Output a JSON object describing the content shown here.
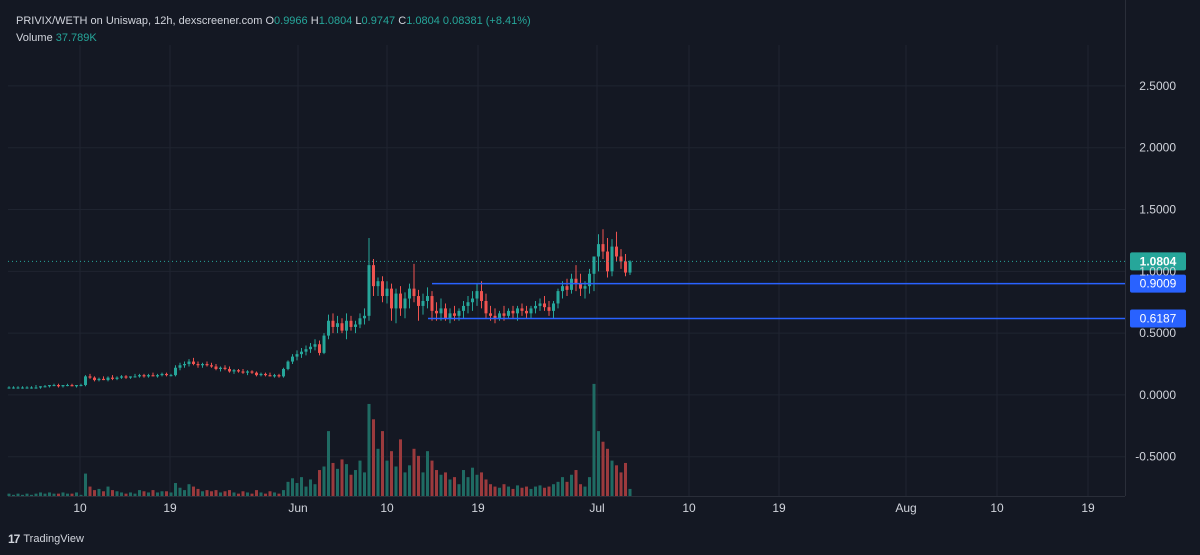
{
  "header": {
    "symbol": "PRIVIX/WETH on Uniswap, 12h, dexscreener.com",
    "open_label": "O",
    "open": "0.9966",
    "high_label": "H",
    "high": "1.0804",
    "low_label": "L",
    "low": "0.9747",
    "close_label": "C",
    "close": "1.0804",
    "change": "0.08381 (+8.41%)",
    "volume_label": "Volume",
    "volume": "37.789K"
  },
  "footer": {
    "brand": "TradingView",
    "logo_icon": "tradingview-logo-icon"
  },
  "colors": {
    "up": "#26a69a",
    "down": "#ef5350",
    "vol_up": "#1f6b63",
    "vol_down": "#9b3a3d",
    "level_line": "#2962ff",
    "background": "#141823",
    "grid": "#1f2430"
  },
  "chart_data": {
    "type": "candlestick",
    "interval": "12h",
    "y_axis": {
      "ticks": [
        "2.5000",
        "2.0000",
        "1.5000",
        "1.0000",
        "0.5000",
        "0.0000",
        "-0.5000"
      ],
      "range": [
        -0.85,
        2.75
      ]
    },
    "x_axis": {
      "ticks": [
        "10",
        "19",
        "Jun",
        "10",
        "19",
        "Jul",
        "10",
        "19",
        "Aug",
        "10",
        "19"
      ]
    },
    "last_price_label": "1.0804",
    "horizontal_levels": [
      {
        "label": "0.9009",
        "value": 0.9009
      },
      {
        "label": "0.6187",
        "value": 0.6187
      }
    ],
    "notes": "Prices estimated from the y axis; volume shown as bars in the lower part of the chart (no scale printed).",
    "candles": [
      [
        0.06,
        0.07,
        0.05,
        0.06,
        0.02
      ],
      [
        0.06,
        0.07,
        0.05,
        0.06,
        0.01
      ],
      [
        0.06,
        0.07,
        0.05,
        0.06,
        0.02
      ],
      [
        0.06,
        0.07,
        0.05,
        0.06,
        0.01
      ],
      [
        0.06,
        0.07,
        0.05,
        0.06,
        0.02
      ],
      [
        0.06,
        0.07,
        0.05,
        0.06,
        0.01
      ],
      [
        0.06,
        0.08,
        0.05,
        0.06,
        0.02
      ],
      [
        0.06,
        0.07,
        0.05,
        0.07,
        0.03
      ],
      [
        0.07,
        0.08,
        0.06,
        0.07,
        0.02
      ],
      [
        0.07,
        0.08,
        0.06,
        0.08,
        0.03
      ],
      [
        0.08,
        0.09,
        0.07,
        0.08,
        0.02
      ],
      [
        0.08,
        0.09,
        0.06,
        0.07,
        0.02
      ],
      [
        0.07,
        0.08,
        0.06,
        0.08,
        0.03
      ],
      [
        0.08,
        0.09,
        0.07,
        0.08,
        0.02
      ],
      [
        0.08,
        0.09,
        0.07,
        0.07,
        0.02
      ],
      [
        0.07,
        0.08,
        0.06,
        0.08,
        0.03
      ],
      [
        0.08,
        0.09,
        0.07,
        0.08,
        0.01
      ],
      [
        0.08,
        0.16,
        0.07,
        0.15,
        0.19
      ],
      [
        0.15,
        0.17,
        0.13,
        0.14,
        0.08
      ],
      [
        0.14,
        0.15,
        0.11,
        0.12,
        0.05
      ],
      [
        0.12,
        0.14,
        0.11,
        0.13,
        0.06
      ],
      [
        0.13,
        0.15,
        0.12,
        0.12,
        0.04
      ],
      [
        0.12,
        0.15,
        0.11,
        0.14,
        0.08
      ],
      [
        0.14,
        0.16,
        0.12,
        0.13,
        0.05
      ],
      [
        0.13,
        0.15,
        0.12,
        0.14,
        0.04
      ],
      [
        0.14,
        0.16,
        0.13,
        0.15,
        0.03
      ],
      [
        0.15,
        0.16,
        0.13,
        0.14,
        0.02
      ],
      [
        0.14,
        0.15,
        0.13,
        0.15,
        0.03
      ],
      [
        0.15,
        0.17,
        0.14,
        0.15,
        0.02
      ],
      [
        0.15,
        0.17,
        0.14,
        0.16,
        0.05
      ],
      [
        0.16,
        0.17,
        0.14,
        0.15,
        0.04
      ],
      [
        0.15,
        0.17,
        0.14,
        0.16,
        0.03
      ],
      [
        0.16,
        0.18,
        0.15,
        0.15,
        0.05
      ],
      [
        0.15,
        0.17,
        0.14,
        0.16,
        0.03
      ],
      [
        0.16,
        0.18,
        0.15,
        0.17,
        0.04
      ],
      [
        0.17,
        0.18,
        0.15,
        0.16,
        0.04
      ],
      [
        0.16,
        0.17,
        0.15,
        0.16,
        0.03
      ],
      [
        0.16,
        0.24,
        0.15,
        0.22,
        0.11
      ],
      [
        0.22,
        0.26,
        0.2,
        0.24,
        0.07
      ],
      [
        0.24,
        0.27,
        0.22,
        0.25,
        0.05
      ],
      [
        0.25,
        0.29,
        0.23,
        0.27,
        0.1
      ],
      [
        0.27,
        0.3,
        0.24,
        0.25,
        0.08
      ],
      [
        0.25,
        0.27,
        0.22,
        0.24,
        0.06
      ],
      [
        0.24,
        0.26,
        0.22,
        0.25,
        0.04
      ],
      [
        0.25,
        0.27,
        0.23,
        0.24,
        0.05
      ],
      [
        0.24,
        0.26,
        0.22,
        0.23,
        0.04
      ],
      [
        0.23,
        0.25,
        0.2,
        0.21,
        0.05
      ],
      [
        0.21,
        0.23,
        0.19,
        0.22,
        0.03
      ],
      [
        0.22,
        0.24,
        0.2,
        0.21,
        0.04
      ],
      [
        0.21,
        0.23,
        0.18,
        0.19,
        0.05
      ],
      [
        0.19,
        0.21,
        0.17,
        0.2,
        0.03
      ],
      [
        0.2,
        0.21,
        0.18,
        0.19,
        0.02
      ],
      [
        0.19,
        0.21,
        0.17,
        0.18,
        0.04
      ],
      [
        0.18,
        0.2,
        0.16,
        0.19,
        0.03
      ],
      [
        0.19,
        0.2,
        0.17,
        0.18,
        0.02
      ],
      [
        0.18,
        0.19,
        0.15,
        0.16,
        0.05
      ],
      [
        0.16,
        0.18,
        0.15,
        0.17,
        0.03
      ],
      [
        0.17,
        0.18,
        0.15,
        0.16,
        0.02
      ],
      [
        0.16,
        0.18,
        0.15,
        0.15,
        0.04
      ],
      [
        0.15,
        0.17,
        0.14,
        0.16,
        0.03
      ],
      [
        0.16,
        0.17,
        0.14,
        0.15,
        0.02
      ],
      [
        0.15,
        0.22,
        0.14,
        0.21,
        0.05
      ],
      [
        0.21,
        0.28,
        0.2,
        0.27,
        0.12
      ],
      [
        0.27,
        0.33,
        0.25,
        0.31,
        0.15
      ],
      [
        0.31,
        0.36,
        0.28,
        0.33,
        0.11
      ],
      [
        0.33,
        0.38,
        0.3,
        0.35,
        0.16
      ],
      [
        0.35,
        0.4,
        0.32,
        0.37,
        0.08
      ],
      [
        0.37,
        0.42,
        0.34,
        0.39,
        0.14
      ],
      [
        0.39,
        0.45,
        0.36,
        0.41,
        0.1
      ],
      [
        0.41,
        0.44,
        0.32,
        0.34,
        0.22
      ],
      [
        0.34,
        0.5,
        0.33,
        0.48,
        0.25
      ],
      [
        0.48,
        0.65,
        0.45,
        0.6,
        0.55
      ],
      [
        0.6,
        0.66,
        0.5,
        0.55,
        0.28
      ],
      [
        0.55,
        0.64,
        0.5,
        0.58,
        0.23
      ],
      [
        0.58,
        0.62,
        0.5,
        0.52,
        0.31
      ],
      [
        0.52,
        0.66,
        0.45,
        0.6,
        0.27
      ],
      [
        0.6,
        0.64,
        0.52,
        0.55,
        0.18
      ],
      [
        0.55,
        0.6,
        0.5,
        0.57,
        0.22
      ],
      [
        0.57,
        0.66,
        0.54,
        0.62,
        0.3
      ],
      [
        0.62,
        0.7,
        0.57,
        0.64,
        0.2
      ],
      [
        0.64,
        1.27,
        0.6,
        1.05,
        0.78
      ],
      [
        1.05,
        1.1,
        0.8,
        0.88,
        0.65
      ],
      [
        0.88,
        0.95,
        0.8,
        0.92,
        0.4
      ],
      [
        0.92,
        0.96,
        0.75,
        0.8,
        0.55
      ],
      [
        0.8,
        0.92,
        0.74,
        0.86,
        0.3
      ],
      [
        0.86,
        0.9,
        0.6,
        0.7,
        0.38
      ],
      [
        0.7,
        0.86,
        0.58,
        0.82,
        0.25
      ],
      [
        0.82,
        0.88,
        0.64,
        0.7,
        0.48
      ],
      [
        0.7,
        0.83,
        0.62,
        0.78,
        0.2
      ],
      [
        0.78,
        0.9,
        0.7,
        0.86,
        0.26
      ],
      [
        0.86,
        1.06,
        0.75,
        0.8,
        0.4
      ],
      [
        0.8,
        0.85,
        0.6,
        0.72,
        0.34
      ],
      [
        0.72,
        0.82,
        0.65,
        0.76,
        0.2
      ],
      [
        0.76,
        0.87,
        0.7,
        0.8,
        0.38
      ],
      [
        0.8,
        0.84,
        0.6,
        0.68,
        0.3
      ],
      [
        0.68,
        0.75,
        0.6,
        0.66,
        0.22
      ],
      [
        0.66,
        0.78,
        0.6,
        0.7,
        0.18
      ],
      [
        0.7,
        0.74,
        0.6,
        0.62,
        0.2
      ],
      [
        0.62,
        0.7,
        0.58,
        0.66,
        0.14
      ],
      [
        0.66,
        0.72,
        0.6,
        0.64,
        0.16
      ],
      [
        0.64,
        0.7,
        0.6,
        0.68,
        0.1
      ],
      [
        0.68,
        0.76,
        0.62,
        0.72,
        0.22
      ],
      [
        0.72,
        0.8,
        0.66,
        0.75,
        0.16
      ],
      [
        0.75,
        0.84,
        0.68,
        0.78,
        0.24
      ],
      [
        0.78,
        0.9,
        0.72,
        0.84,
        0.18
      ],
      [
        0.84,
        0.92,
        0.7,
        0.76,
        0.2
      ],
      [
        0.76,
        0.82,
        0.62,
        0.66,
        0.14
      ],
      [
        0.66,
        0.72,
        0.6,
        0.64,
        0.1
      ],
      [
        0.64,
        0.7,
        0.58,
        0.62,
        0.08
      ],
      [
        0.62,
        0.68,
        0.6,
        0.66,
        0.07
      ],
      [
        0.66,
        0.72,
        0.6,
        0.64,
        0.1
      ],
      [
        0.64,
        0.7,
        0.62,
        0.68,
        0.08
      ],
      [
        0.68,
        0.72,
        0.62,
        0.66,
        0.06
      ],
      [
        0.66,
        0.72,
        0.6,
        0.7,
        0.09
      ],
      [
        0.7,
        0.74,
        0.64,
        0.68,
        0.07
      ],
      [
        0.68,
        0.72,
        0.62,
        0.66,
        0.08
      ],
      [
        0.66,
        0.72,
        0.62,
        0.7,
        0.06
      ],
      [
        0.7,
        0.76,
        0.66,
        0.72,
        0.08
      ],
      [
        0.72,
        0.78,
        0.68,
        0.74,
        0.09
      ],
      [
        0.74,
        0.8,
        0.68,
        0.71,
        0.07
      ],
      [
        0.71,
        0.76,
        0.64,
        0.68,
        0.08
      ],
      [
        0.68,
        0.76,
        0.62,
        0.74,
        0.1
      ],
      [
        0.74,
        0.86,
        0.7,
        0.84,
        0.12
      ],
      [
        0.84,
        0.92,
        0.78,
        0.88,
        0.16
      ],
      [
        0.88,
        0.94,
        0.8,
        0.85,
        0.12
      ],
      [
        0.85,
        0.98,
        0.82,
        0.94,
        0.18
      ],
      [
        0.94,
        1.05,
        0.84,
        0.9,
        0.22
      ],
      [
        0.9,
        0.98,
        0.8,
        0.86,
        0.1
      ],
      [
        0.86,
        0.92,
        0.78,
        0.88,
        0.08
      ],
      [
        0.88,
        1.02,
        0.82,
        0.98,
        0.16
      ],
      [
        0.98,
        1.1,
        0.84,
        1.12,
        0.95
      ],
      [
        1.12,
        1.3,
        1.0,
        1.22,
        0.55
      ],
      [
        1.22,
        1.34,
        1.1,
        1.16,
        0.46
      ],
      [
        1.16,
        1.27,
        0.95,
        1.0,
        0.4
      ],
      [
        1.0,
        1.26,
        0.96,
        1.2,
        0.3
      ],
      [
        1.2,
        1.32,
        1.08,
        1.12,
        0.26
      ],
      [
        1.12,
        1.18,
        1.02,
        1.08,
        0.2
      ],
      [
        1.08,
        1.14,
        0.96,
        0.99,
        0.28
      ],
      [
        0.99,
        1.09,
        0.97,
        1.08,
        0.06
      ]
    ]
  }
}
